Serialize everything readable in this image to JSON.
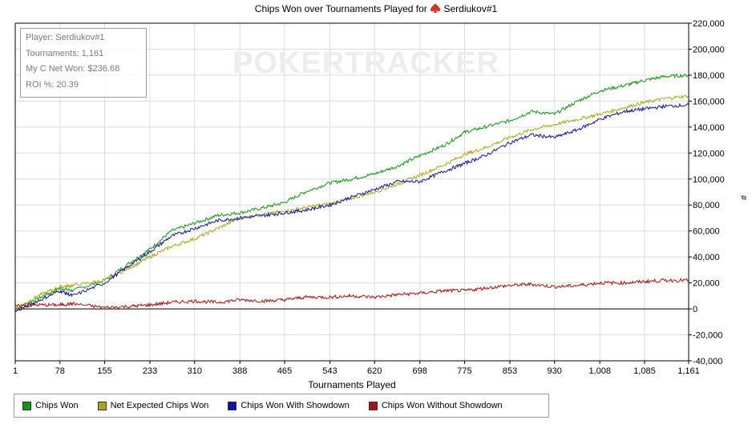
{
  "title": "Chips Won over Tournaments Played for",
  "player_name": "Serdiukov#1",
  "watermark": "POKERTRACKER",
  "info_box": [
    "Player: Serdiukov#1",
    "Tournaments: 1,161",
    "My C Net Won: $236.68",
    "ROI %: 20.39"
  ],
  "colors": {
    "chips_won": "#109910",
    "net_expected": "#a8a814",
    "with_showdown": "#1010b0",
    "without_showdown": "#b01010",
    "spade": "#e03020"
  },
  "chart_data": {
    "type": "line",
    "xlabel": "Tournaments Played",
    "ylabel": "#",
    "xlim": [
      1,
      1161
    ],
    "ylim": [
      -40000,
      220000
    ],
    "x_ticks": [
      1,
      78,
      155,
      233,
      310,
      388,
      465,
      543,
      620,
      698,
      775,
      853,
      930,
      1008,
      1085,
      1161
    ],
    "x_tick_labels": [
      "1",
      "78",
      "155",
      "233",
      "310",
      "388",
      "465",
      "543",
      "620",
      "698",
      "775",
      "853",
      "930",
      "1,008",
      "1,085",
      "1,161"
    ],
    "y_ticks": [
      -40000,
      -20000,
      0,
      20000,
      40000,
      60000,
      80000,
      100000,
      120000,
      140000,
      160000,
      180000,
      200000,
      220000
    ],
    "y_tick_labels": [
      "-40,000",
      "-20,000",
      "0",
      "20,000",
      "40,000",
      "60,000",
      "80,000",
      "100,000",
      "120,000",
      "140,000",
      "160,000",
      "180,000",
      "200,000",
      "220,000"
    ],
    "grid": true,
    "legend_position": "bottom",
    "x": [
      1,
      40,
      78,
      100,
      155,
      200,
      233,
      270,
      310,
      350,
      388,
      430,
      465,
      500,
      543,
      580,
      620,
      660,
      698,
      740,
      775,
      810,
      853,
      890,
      930,
      970,
      1008,
      1050,
      1085,
      1120,
      1161
    ],
    "series": [
      {
        "name": "Chips Won",
        "color_key": "chips_won",
        "values": [
          0,
          8000,
          16000,
          14000,
          22000,
          36000,
          46000,
          60000,
          66000,
          72000,
          74000,
          78000,
          82000,
          90000,
          97000,
          100000,
          104000,
          110000,
          118000,
          126000,
          136000,
          140000,
          145000,
          152000,
          150000,
          160000,
          168000,
          172000,
          176000,
          179000,
          180000
        ]
      },
      {
        "name": "Net Expected Chips Won",
        "color_key": "net_expected",
        "values": [
          0,
          10000,
          17000,
          18000,
          22000,
          32000,
          40000,
          48000,
          54000,
          62000,
          70000,
          73000,
          75000,
          78000,
          81000,
          85000,
          90000,
          96000,
          103000,
          111000,
          119000,
          124000,
          132000,
          138000,
          142000,
          146000,
          150000,
          155000,
          159000,
          162000,
          164000
        ]
      },
      {
        "name": "Chips Won With Showdown",
        "color_key": "with_showdown",
        "values": [
          -2000,
          6000,
          14000,
          10000,
          20000,
          34000,
          44000,
          56000,
          62000,
          68000,
          70000,
          72000,
          74000,
          76000,
          80000,
          86000,
          92000,
          98000,
          98000,
          106000,
          112000,
          118000,
          128000,
          134000,
          132000,
          138000,
          146000,
          152000,
          154000,
          156000,
          157000
        ]
      },
      {
        "name": "Chips Won Without Showdown",
        "color_key": "without_showdown",
        "values": [
          2000,
          3000,
          3000,
          4000,
          1000,
          2000,
          3000,
          5000,
          6000,
          5000,
          7000,
          6000,
          7000,
          9000,
          9000,
          10000,
          9000,
          11000,
          12000,
          14000,
          14000,
          16000,
          18000,
          19000,
          17000,
          18000,
          20000,
          20000,
          21000,
          22000,
          22000
        ]
      }
    ]
  }
}
